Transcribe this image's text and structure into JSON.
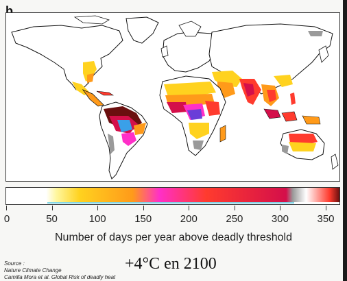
{
  "panel_label": "b",
  "legend": {
    "ticks": [
      "0",
      "50",
      "100",
      "150",
      "200",
      "250",
      "300",
      "350"
    ],
    "tick_values": [
      0,
      50,
      100,
      150,
      200,
      250,
      300,
      350
    ],
    "range": [
      0,
      365
    ],
    "title": "Number of days per year above deadly threshold",
    "colors": [
      "#ffffff",
      "#fff7a0",
      "#ffd21f",
      "#ff9a1a",
      "#ff3b2e",
      "#d40f4a",
      "#ff2fc8",
      "#6a3dd8",
      "#3aa0e8",
      "#7fd6e8",
      "#9a9a9a",
      "#6b0f0f"
    ]
  },
  "source": {
    "heading": "Source :",
    "journal": "Nature Climate Change",
    "citation": "Camilla Mora et al. Global Risk of deadly heat"
  },
  "scenario_caption": "+4°C en 2100"
}
